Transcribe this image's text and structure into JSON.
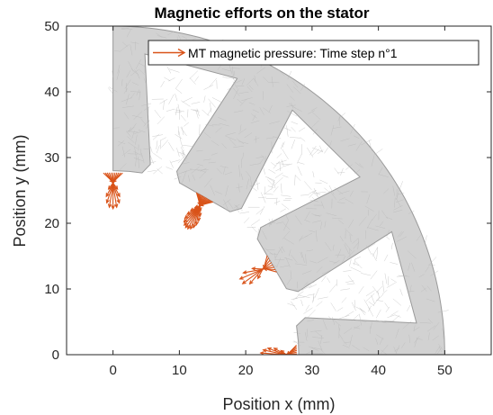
{
  "chart_data": {
    "type": "quiver",
    "title": "Magnetic efforts on the stator",
    "xlabel": "Position x (mm)",
    "ylabel": "Position y (mm)",
    "xlim": [
      -7,
      57
    ],
    "ylim": [
      0,
      50
    ],
    "xticks": [
      0,
      10,
      20,
      30,
      40,
      50
    ],
    "yticks": [
      0,
      10,
      20,
      30,
      40,
      50
    ],
    "grid": false,
    "legend": {
      "position": "top-right",
      "entries": [
        "MT magnetic pressure: Time step n°1"
      ]
    },
    "stator": {
      "r_inner": 28,
      "r_outer": 50,
      "r_yoke": 46,
      "tooth_angles_deg": [
        0,
        30,
        60,
        90
      ],
      "tooth_half_width_deg": [
        0,
        13,
        13,
        0
      ],
      "mesh_color": "#d2d2d2",
      "edge_color": "#9a9a9a"
    },
    "arrow_color": "#d95319",
    "arrow_groups": [
      {
        "tooth_deg": 90,
        "count": 11
      },
      {
        "tooth_deg": 60,
        "count": 16
      },
      {
        "tooth_deg": 30,
        "count": 8
      },
      {
        "tooth_deg": 0,
        "count": 12
      }
    ]
  }
}
